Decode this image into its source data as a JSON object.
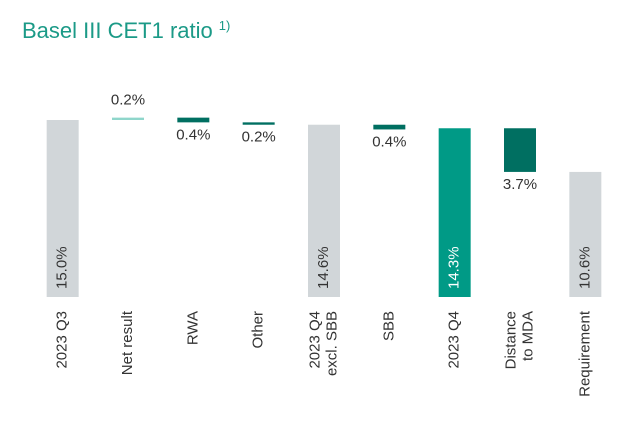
{
  "chart_data": {
    "type": "waterfall",
    "title": "Basel III CET1 ratio",
    "title_note": "1)",
    "categories": [
      [
        "2023 Q3"
      ],
      [
        "Net result"
      ],
      [
        "RWA"
      ],
      [
        "Other"
      ],
      [
        "2023 Q4",
        "excl. SBB"
      ],
      [
        "SBB"
      ],
      [
        "2023 Q4"
      ],
      [
        "Distance",
        "to MDA"
      ],
      [
        "Requirement"
      ]
    ],
    "measure": [
      "absolute",
      "relative",
      "relative",
      "relative",
      "absolute",
      "relative",
      "absolute",
      "relative",
      "absolute"
    ],
    "values": [
      15.0,
      0.2,
      -0.4,
      -0.2,
      14.6,
      -0.4,
      14.3,
      -3.7,
      10.6
    ],
    "value_labels": [
      "15.0%",
      "0.2%",
      "0.4%",
      "0.2%",
      "14.6%",
      "0.4%",
      "14.3%",
      "3.7%",
      "10.6%"
    ],
    "colors": [
      "#d1d6d9",
      "#8fd6cb",
      "#006f61",
      "#006f61",
      "#d1d6d9",
      "#006f61",
      "#009a86",
      "#006f61",
      "#d1d6d9"
    ],
    "ylim": [
      0,
      15
    ]
  }
}
